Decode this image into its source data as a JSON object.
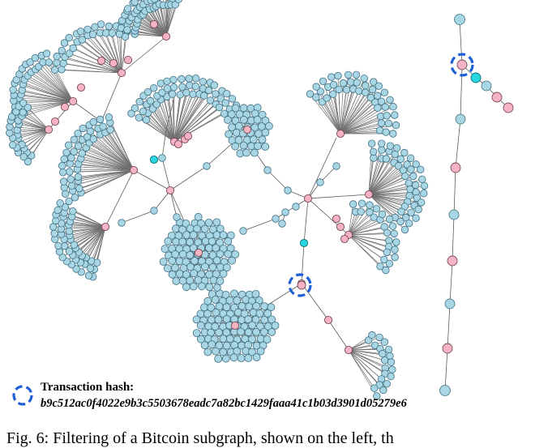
{
  "legend": {
    "label": "Transaction hash:",
    "hash": "b9c512ac0f4022e9b3c5503678eadc7a82bc1429faaa41c1b03d3901d05279e6"
  },
  "caption": "Fig. 6: Filtering of a Bitcoin subgraph, shown on the left, th",
  "colors": {
    "leaf": "#a9d6e5",
    "hub": "#f5b3c4",
    "highlight": "#28d6e0",
    "marker": "#1f5fd6",
    "edge": "#6f6f6f"
  },
  "icons": {
    "legend_marker": "dashed-circle-icon"
  }
}
